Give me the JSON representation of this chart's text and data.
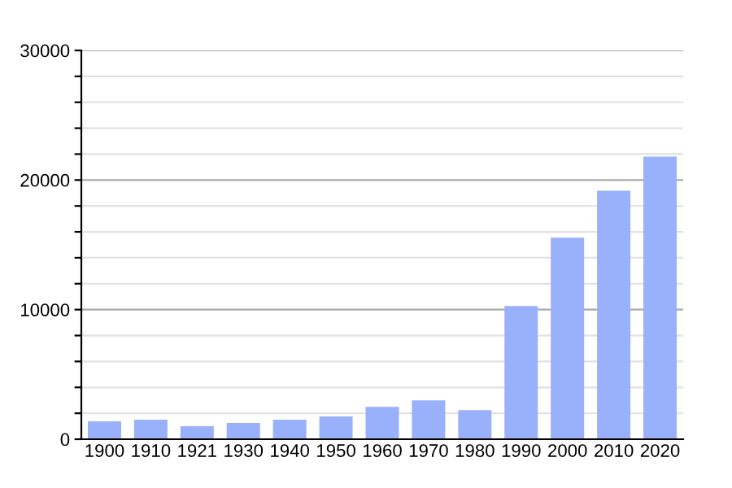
{
  "chart_data": {
    "type": "bar",
    "categories": [
      "1900",
      "1910",
      "1921",
      "1930",
      "1940",
      "1950",
      "1960",
      "1970",
      "1980",
      "1990",
      "2000",
      "2010",
      "2020"
    ],
    "values": [
      1380,
      1500,
      1000,
      1250,
      1500,
      1750,
      2500,
      3000,
      2250,
      10280,
      15550,
      19180,
      21810
    ],
    "color": "#99b0fb",
    "ylim": [
      0,
      30000
    ],
    "yticks": [
      0,
      {
        "value": 2000,
        "label": null
      },
      {
        "value": 4000,
        "label": null
      },
      {
        "value": 6000,
        "label": null
      },
      {
        "value": 8000,
        "label": null
      },
      10000,
      {
        "value": 12000,
        "label": null
      },
      {
        "value": 14000,
        "label": null
      },
      {
        "value": 16000,
        "label": null
      },
      {
        "value": 18000,
        "label": null
      },
      20000,
      {
        "value": 22000,
        "label": null
      },
      {
        "value": 24000,
        "label": null
      },
      {
        "value": 26000,
        "label": null
      },
      {
        "value": 28000,
        "label": null
      },
      30000
    ],
    "grid": "y"
  }
}
